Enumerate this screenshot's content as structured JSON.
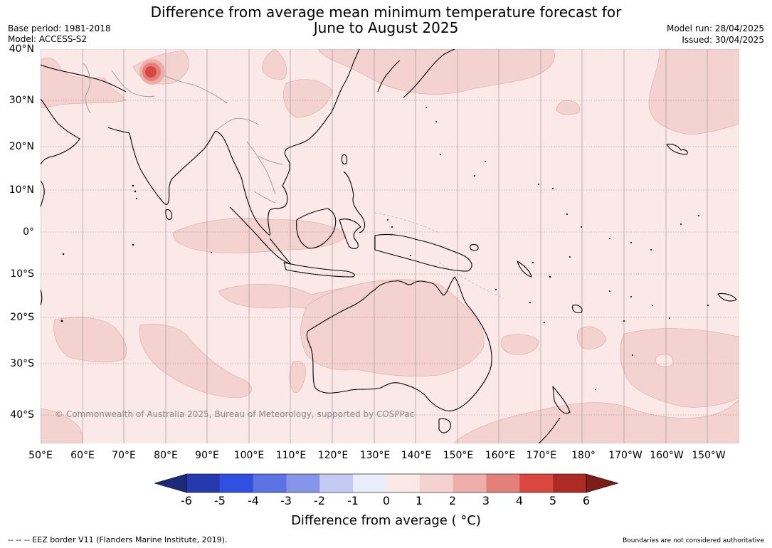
{
  "title": {
    "line1": "Difference from average mean minimum temperature forecast for",
    "line2": "June to August 2025"
  },
  "meta": {
    "base_period": "Base period: 1981-2018",
    "model": "Model: ACCESS-S2",
    "model_run": "Model run: 28/04/2025",
    "issued": "Issued: 30/04/2025"
  },
  "map": {
    "copyright": "© Commonwealth of Australia 2025, Bureau of Meteorology, supported by COSPPac",
    "lat_labels": [
      "40°N",
      "30°N",
      "20°N",
      "10°N",
      "0°",
      "10°S",
      "20°S",
      "30°S",
      "40°S"
    ],
    "lon_labels": [
      "50°E",
      "60°E",
      "70°E",
      "80°E",
      "90°E",
      "100°E",
      "110°E",
      "120°E",
      "130°E",
      "140°E",
      "150°E",
      "160°E",
      "170°E",
      "180°",
      "170°W",
      "160°W",
      "150°W"
    ],
    "background_anomaly_color": "#fbe9e8",
    "warm_anomaly_color": "#f4d2d0",
    "hotspot_color": "#d9473f"
  },
  "colorbar": {
    "ticks": [
      "-6",
      "-5",
      "-4",
      "-3",
      "-2",
      "-1",
      "0",
      "1",
      "2",
      "3",
      "4",
      "5",
      "6"
    ],
    "colors": [
      "#1c2a7a",
      "#263aaf",
      "#2f50e0",
      "#5c74e3",
      "#8596ea",
      "#c3cbf3",
      "#e9ecfb",
      "#fbe9e8",
      "#f4d2d0",
      "#eeaeaa",
      "#e4807a",
      "#d9473f",
      "#ae2a24",
      "#7c1d18"
    ],
    "title": "Difference from average ( °C)"
  },
  "footer": {
    "eez_note": "--  --  -- EEZ border V11 (Flanders Marine Institute, 2019).",
    "disclaimer": "Boundaries are not considered authoritative"
  }
}
